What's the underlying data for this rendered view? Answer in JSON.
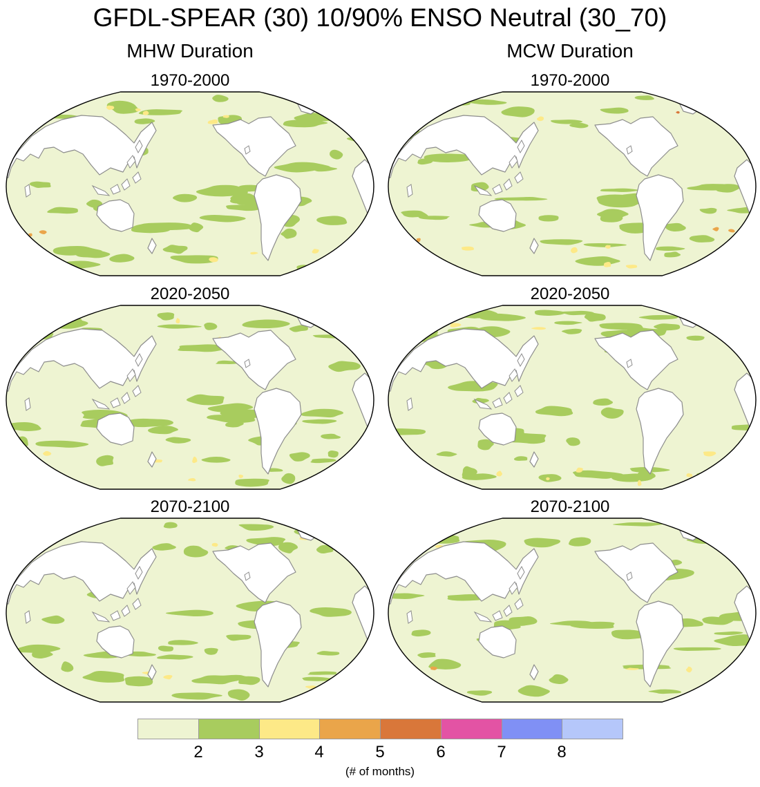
{
  "title": "GFDL-SPEAR (30) 10/90% ENSO Neutral (30_70)",
  "columns": [
    {
      "title": "MHW Duration"
    },
    {
      "title": "MCW Duration"
    }
  ],
  "panel_titles": [
    "1970-2000",
    "2020-2050",
    "2070-2100",
    "1970-2000",
    "2020-2050",
    "2070-2100"
  ],
  "panels": [
    {
      "column": "MHW Duration",
      "period": "1970-2000"
    },
    {
      "column": "MHW Duration",
      "period": "2020-2050"
    },
    {
      "column": "MHW Duration",
      "period": "2070-2100"
    },
    {
      "column": "MCW Duration",
      "period": "1970-2000"
    },
    {
      "column": "MCW Duration",
      "period": "2020-2050"
    },
    {
      "column": "MCW Duration",
      "period": "2070-2100"
    }
  ],
  "map_colors": {
    "land": "#ffffff",
    "coastline": "#8c8c8c",
    "border": "#000000"
  },
  "colorbar": {
    "ticks": [
      "2",
      "3",
      "4",
      "5",
      "6",
      "7",
      "8"
    ],
    "label": "(# of months)",
    "colors": [
      "#eef4d2",
      "#a8cc5e",
      "#fde987",
      "#eaa54a",
      "#d9773a",
      "#e353a4",
      "#8090f5",
      "#b5c7fa"
    ]
  }
}
